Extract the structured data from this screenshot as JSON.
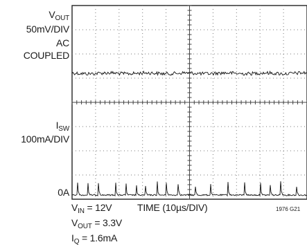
{
  "chart_data": {
    "type": "line",
    "series": [
      {
        "name": "VOUT",
        "volts_per_div": "50mV/DIV",
        "coupling": "AC COUPLED",
        "description_points": "ripple"
      },
      {
        "name": "ISW",
        "amps_per_div": "100mA/DIV",
        "baseline": "0A"
      }
    ],
    "x_scale": "TIME (10µs/DIV)",
    "grid": true
  },
  "labels": {
    "vout_main": "V",
    "vout_sub": "OUT",
    "vout_scale": "50mV/DIV",
    "vout_ac": "AC",
    "vout_coupled": "COUPLED",
    "isw_main": "I",
    "isw_sub": "SW",
    "isw_scale": "100mA/DIV",
    "zero_amp": "0A",
    "vin_main": "V",
    "vin_sub": "IN",
    "vin_val": " = 12V",
    "time_label": "TIME (10µs/DIV)",
    "figure_id": "1976 G21",
    "vout2_main": "V",
    "vout2_sub": "OUT",
    "vout2_val": " = 3.3V",
    "iq_main": "I",
    "iq_sub": "Q",
    "iq_val": " = 1.6mA"
  }
}
